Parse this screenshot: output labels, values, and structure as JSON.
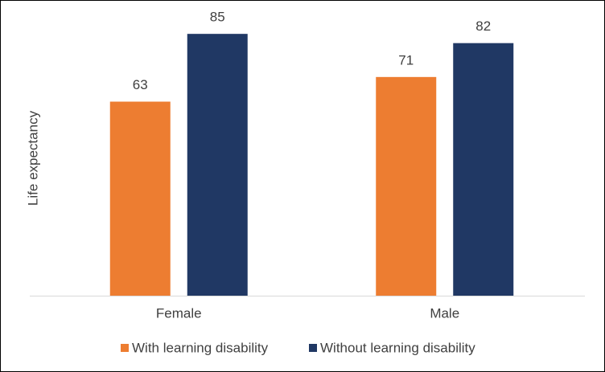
{
  "chart_data": {
    "type": "bar",
    "y_label": "Life expectancy",
    "categories": [
      "Female",
      "Male"
    ],
    "series": [
      {
        "name": "With learning disability",
        "color": "#ed7d31",
        "values": [
          63,
          71
        ]
      },
      {
        "name": "Without learning disability",
        "color": "#203864",
        "values": [
          85,
          82
        ]
      }
    ],
    "ylim": [
      0,
      96
    ],
    "legend": "bottom"
  }
}
